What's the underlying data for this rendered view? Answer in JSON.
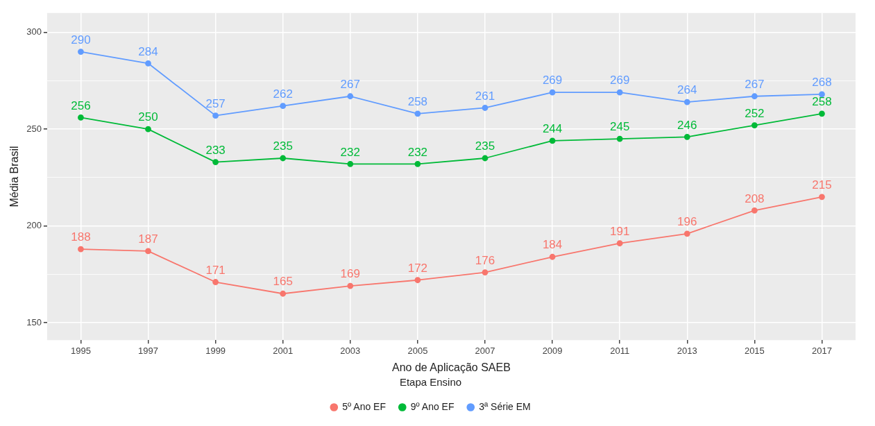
{
  "chart_data": {
    "type": "line",
    "xlabel": "Ano de Aplicação SAEB",
    "ylabel": "Média Brasil",
    "legend_title": "Etapa Ensino",
    "categories": [
      "1995",
      "1997",
      "1999",
      "2001",
      "2003",
      "2005",
      "2007",
      "2009",
      "2011",
      "2013",
      "2015",
      "2017"
    ],
    "series": [
      {
        "name": "5º Ano EF",
        "color": "#f8766d",
        "values": [
          188,
          187,
          171,
          165,
          169,
          172,
          176,
          184,
          191,
          196,
          208,
          215
        ]
      },
      {
        "name": "9º Ano EF",
        "color": "#00ba38",
        "values": [
          256,
          250,
          233,
          235,
          232,
          232,
          235,
          244,
          245,
          246,
          252,
          258
        ]
      },
      {
        "name": "3ª Série EM",
        "color": "#619cff",
        "values": [
          290,
          284,
          257,
          262,
          267,
          258,
          261,
          269,
          269,
          264,
          267,
          268
        ]
      }
    ],
    "ylim": [
      141,
      310
    ],
    "yticks": [
      150,
      {
        "value": 175,
        "label": null
      },
      200,
      {
        "value": 225,
        "label": null
      },
      250,
      {
        "value": 275,
        "label": null
      },
      300
    ],
    "grid": true,
    "legend": "bottom",
    "marker": "circle",
    "line_style": "solid",
    "data_labels": true
  }
}
